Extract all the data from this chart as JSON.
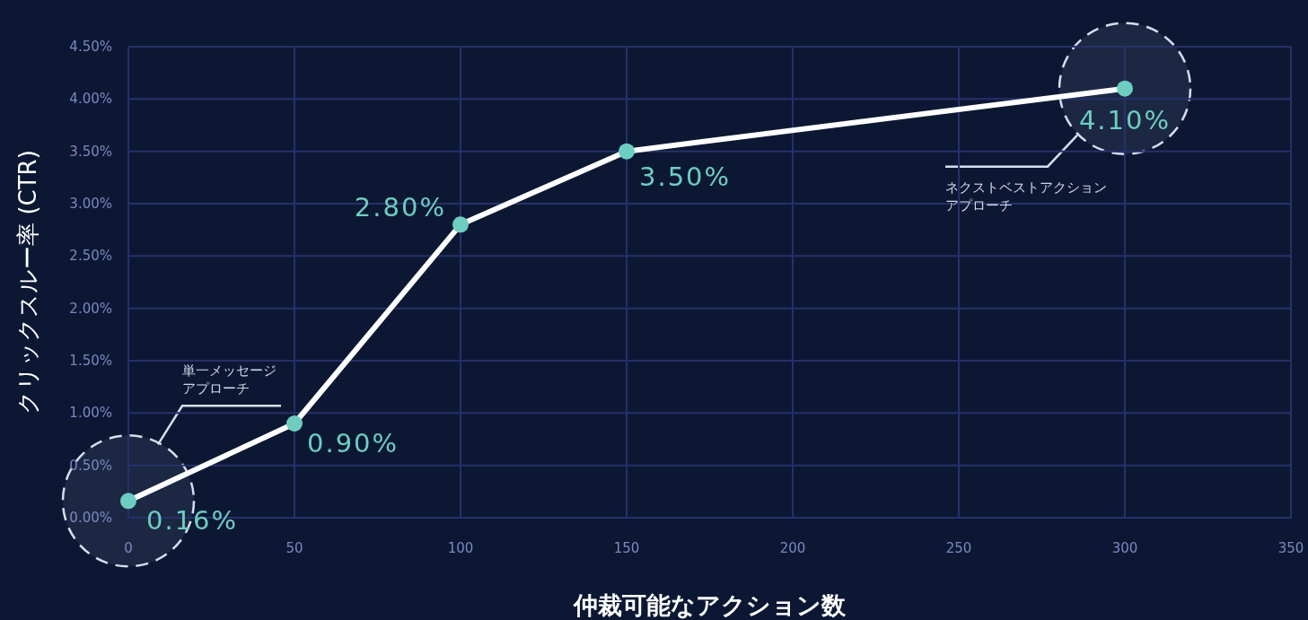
{
  "chart_data": {
    "type": "line",
    "xlabel": "仲裁可能なアクション数",
    "ylabel": "クリックスルー率 (CTR)",
    "x": [
      0,
      50,
      100,
      150,
      300
    ],
    "series": [
      {
        "color": "#ffffff",
        "colors": [
          "#6ecdc1",
          "#6ecdc1",
          "#6ecdc1",
          "#6ecdc1",
          "#6ecdc1"
        ],
        "values": [
          0.16,
          0.9,
          2.8,
          3.5,
          4.1
        ],
        "value_labels": [
          "0.16%",
          "0.90%",
          "2.80%",
          "3.50%",
          "4.10%"
        ]
      }
    ],
    "xlim": [
      0,
      350
    ],
    "xticks": [
      0,
      50,
      100,
      150,
      200,
      250,
      300,
      350
    ],
    "ylim": [
      0,
      4.5
    ],
    "yticks": [
      {
        "value": 0,
        "label": "0.00%"
      },
      {
        "value": 0.5,
        "label": "0.50%"
      },
      {
        "value": 1,
        "label": "1.00%"
      },
      {
        "value": 1.5,
        "label": "1.50%"
      },
      {
        "value": 2,
        "label": "2.00%"
      },
      {
        "value": 2.5,
        "label": "2.50%"
      },
      {
        "value": 3,
        "label": "3.00%"
      },
      {
        "value": 3.5,
        "label": "3.50%"
      },
      {
        "value": 4,
        "label": "4.00%"
      },
      {
        "value": 4.5,
        "label": "4.50%"
      }
    ],
    "grid": true,
    "marker": "circle",
    "line_style": "solid",
    "annotations": [
      "単一メッセージアプローチ",
      "ネクストベストアクションアプローチ"
    ]
  }
}
